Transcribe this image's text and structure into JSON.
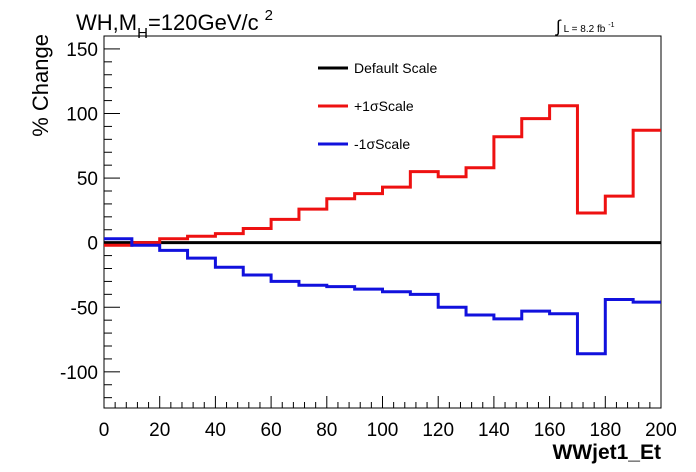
{
  "chart_data": {
    "type": "line",
    "step": true,
    "title": {
      "base": "WH,M",
      "sub": "H",
      "rest": "=120GeV/c",
      "sup": "2"
    },
    "lumi": {
      "integral": "∫",
      "text": "L = 8.2 fb",
      "sup": "-1"
    },
    "xlabel": "WWjet1_Et",
    "ylabel": "% Change",
    "xlim": [
      0,
      200
    ],
    "ylim": [
      -128,
      160
    ],
    "xticks": [
      0,
      20,
      40,
      60,
      80,
      100,
      120,
      140,
      160,
      180,
      200
    ],
    "yticks": [
      -100,
      -50,
      0,
      50,
      100,
      150
    ],
    "bin_edges": [
      0,
      10,
      20,
      30,
      40,
      50,
      60,
      70,
      80,
      90,
      100,
      110,
      120,
      130,
      140,
      150,
      160,
      170,
      180,
      190,
      200
    ],
    "legend_position": "top-center",
    "series": [
      {
        "name": "Default Scale",
        "color": "#000000",
        "values": [
          0,
          0,
          0,
          0,
          0,
          0,
          0,
          0,
          0,
          0,
          0,
          0,
          0,
          0,
          0,
          0,
          0,
          0,
          0,
          0
        ]
      },
      {
        "name": "+1σScale",
        "color": "#ee1111",
        "values": [
          -2,
          0,
          3,
          5,
          7,
          11,
          18,
          26,
          34,
          38,
          43,
          55,
          51,
          58,
          82,
          96,
          106,
          23,
          36,
          87
        ]
      },
      {
        "name": "-1σScale",
        "color": "#1111dd",
        "values": [
          3,
          -2,
          -6,
          -12,
          -19,
          -25,
          -30,
          -33,
          -34,
          -36,
          -38,
          -40,
          -50,
          -56,
          -59,
          -53,
          -55,
          -86,
          -44,
          -46
        ]
      }
    ]
  }
}
